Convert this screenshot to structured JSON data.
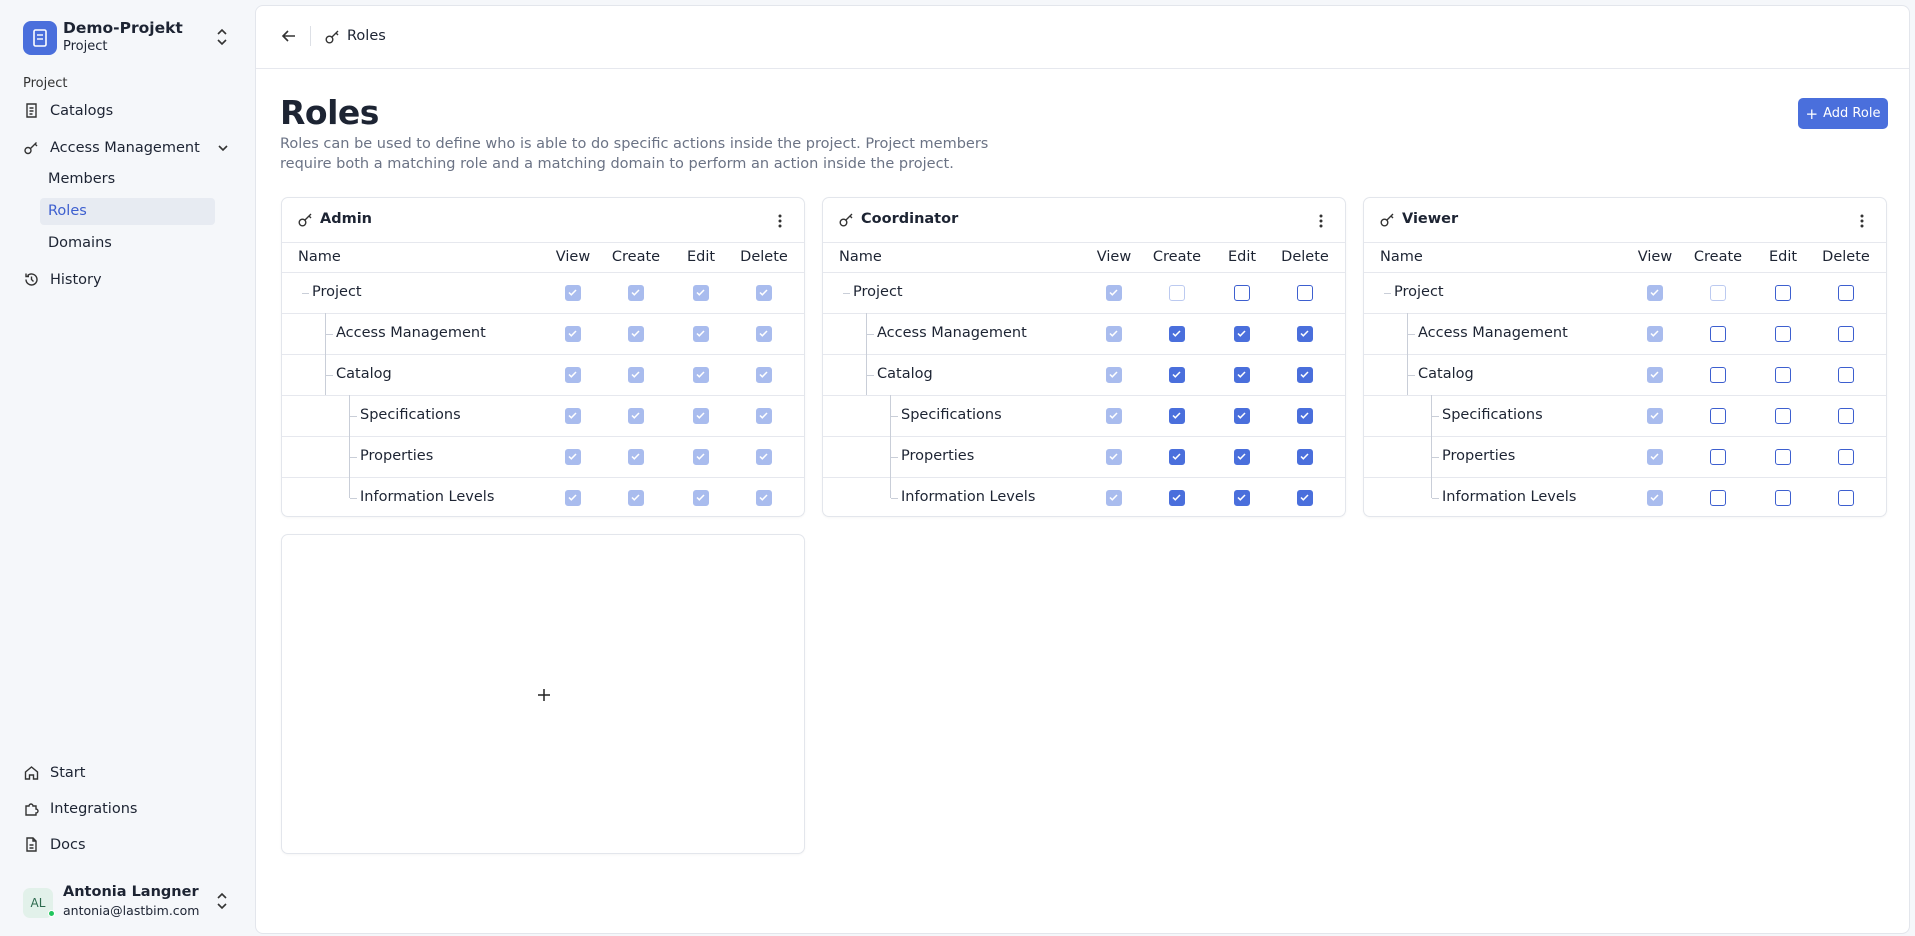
{
  "sidebar": {
    "project": {
      "name": "Demo-Projekt",
      "type": "Project"
    },
    "section": "Project",
    "nav": [
      {
        "label": "Catalogs"
      },
      {
        "label": "Access Management",
        "expanded": true,
        "active_child": 1,
        "children": [
          "Members",
          "Roles",
          "Domains"
        ]
      },
      {
        "label": "History"
      }
    ],
    "footer_nav": [
      "Start",
      "Integrations",
      "Docs"
    ],
    "user": {
      "initials": "AL",
      "name": "Antonia Langner",
      "email": "antonia@lastbim.com"
    }
  },
  "header": {
    "breadcrumb": "Roles"
  },
  "page": {
    "title": "Roles",
    "description": "Roles can be used to define who is able to do specific actions inside the project. Project members require both a matching role and a matching domain to perform an action inside the project.",
    "add_button": "Add Role"
  },
  "roles": {
    "columns": [
      "Name",
      "View",
      "Create",
      "Edit",
      "Delete"
    ],
    "resources": [
      {
        "label": "Project",
        "level": 0
      },
      {
        "label": "Access Management",
        "level": 1
      },
      {
        "label": "Catalog",
        "level": 1
      },
      {
        "label": "Specifications",
        "level": 2
      },
      {
        "label": "Properties",
        "level": 2
      },
      {
        "label": "Information Levels",
        "level": 2
      }
    ],
    "cards": [
      {
        "name": "Admin",
        "permissions": [
          [
            "checked-disabled",
            "checked-disabled",
            "checked-disabled",
            "checked-disabled"
          ],
          [
            "checked-disabled",
            "checked-disabled",
            "checked-disabled",
            "checked-disabled"
          ],
          [
            "checked-disabled",
            "checked-disabled",
            "checked-disabled",
            "checked-disabled"
          ],
          [
            "checked-disabled",
            "checked-disabled",
            "checked-disabled",
            "checked-disabled"
          ],
          [
            "checked-disabled",
            "checked-disabled",
            "checked-disabled",
            "checked-disabled"
          ],
          [
            "checked-disabled",
            "checked-disabled",
            "checked-disabled",
            "checked-disabled"
          ]
        ]
      },
      {
        "name": "Coordinator",
        "permissions": [
          [
            "checked-disabled",
            "unchecked-disabled",
            "unchecked",
            "unchecked"
          ],
          [
            "checked-disabled",
            "checked",
            "checked",
            "checked"
          ],
          [
            "checked-disabled",
            "checked",
            "checked",
            "checked"
          ],
          [
            "checked-disabled",
            "checked",
            "checked",
            "checked"
          ],
          [
            "checked-disabled",
            "checked",
            "checked",
            "checked"
          ],
          [
            "checked-disabled",
            "checked",
            "checked",
            "checked"
          ]
        ]
      },
      {
        "name": "Viewer",
        "permissions": [
          [
            "checked-disabled",
            "unchecked-disabled",
            "unchecked",
            "unchecked"
          ],
          [
            "checked-disabled",
            "unchecked",
            "unchecked",
            "unchecked"
          ],
          [
            "checked-disabled",
            "unchecked",
            "unchecked",
            "unchecked"
          ],
          [
            "checked-disabled",
            "unchecked",
            "unchecked",
            "unchecked"
          ],
          [
            "checked-disabled",
            "unchecked",
            "unchecked",
            "unchecked"
          ],
          [
            "checked-disabled",
            "unchecked",
            "unchecked",
            "unchecked"
          ]
        ]
      }
    ]
  }
}
